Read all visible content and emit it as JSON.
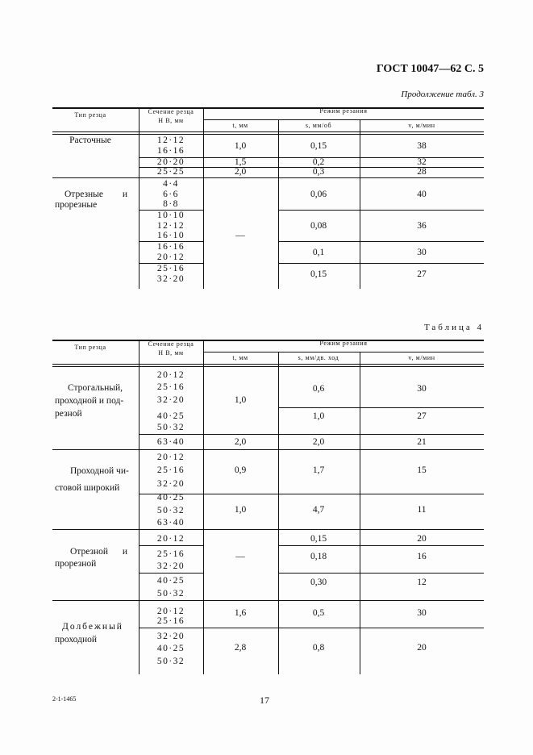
{
  "header": {
    "doc_ref": "ГОСТ 10047—62 С. 5",
    "continuation": "Продолжение табл. 3"
  },
  "columns": {
    "type": "Тип резца",
    "section": "Сечение резца",
    "section_units": "Н В,   мм",
    "mode": "Режим резания",
    "t": "t, мм",
    "s3": "s, мм/об",
    "s4": "s, мм/дв. ход",
    "v": "v, м/мин"
  },
  "table3": {
    "types": [
      [
        "Расточные"
      ],
      [
        "Отрезные и",
        "прорезные"
      ]
    ],
    "sections": [
      "12·12",
      "16·16",
      "20·20",
      "25·25",
      "4·4",
      "6·6",
      "8·8",
      "10·10",
      "12·12",
      "16·10",
      "16·16",
      "20·12",
      "25·16",
      "32·20"
    ],
    "t": [
      "1,0",
      "1,5",
      "2,0",
      "—"
    ],
    "s": [
      "0,15",
      "0,2",
      "0,3",
      "0,06",
      "0,08",
      "0,1",
      "0,15"
    ],
    "v": [
      "38",
      "32",
      "28",
      "40",
      "36",
      "30",
      "27"
    ]
  },
  "table4": {
    "title": "Таблица 4",
    "types": [
      [
        "Строгальный,",
        "проходной и под-",
        "резной"
      ],
      [
        "Проходной чи-",
        "стовой широкий"
      ],
      [
        "Отрезной и",
        "прорезной"
      ],
      [
        "Долбежный",
        "проходной"
      ]
    ],
    "sections": [
      "20·12",
      "25·16",
      "32·20",
      "40·25",
      "50·32",
      "63·40",
      "20·12",
      "25·16",
      "32·20",
      "40·25",
      "50·32",
      "63·40",
      "20·12",
      "25·16",
      "32·20",
      "40·25",
      "50·32",
      "20·12",
      "25·16",
      "32·20",
      "40·25",
      "50·32"
    ],
    "t": [
      "1,0",
      "2,0",
      "0,9",
      "1,0",
      "—",
      "1,6",
      "2,8"
    ],
    "s": [
      "0,6",
      "1,0",
      "2,0",
      "1,7",
      "4,7",
      "0,15",
      "0,18",
      "0,30",
      "0,5",
      "0,8"
    ],
    "v": [
      "30",
      "27",
      "21",
      "15",
      "11",
      "20",
      "16",
      "12",
      "30",
      "20"
    ]
  },
  "footer": {
    "code": "2-1-1465",
    "page": "17"
  }
}
